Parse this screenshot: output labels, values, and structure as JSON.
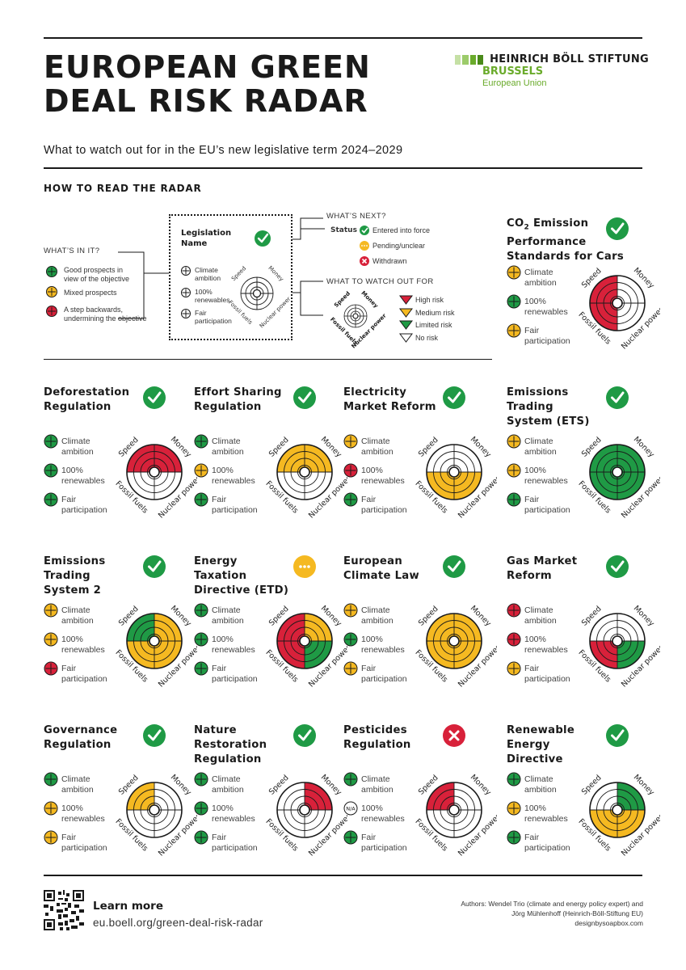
{
  "header": {
    "title_line1": "EUROPEAN GREEN",
    "title_line2": "DEAL RISK RADAR",
    "subtitle": "What to watch out for in the EU’s new legislative term 2024–2029",
    "how_to_read": "HOW TO READ THE RADAR"
  },
  "logo": {
    "name": "HEINRICH BÖLL STIFTUNG",
    "city": "BRUSSELS",
    "region": "European Union",
    "square_colors": [
      "#c5e0a5",
      "#9ccb6a",
      "#6aab2b",
      "#4a8a1a"
    ]
  },
  "colors": {
    "high_risk": "#d8213a",
    "medium_risk": "#f5b921",
    "limited_risk": "#1f9a45",
    "check": "#1f9a45",
    "pending": "#f5b921",
    "withdrawn": "#d8213a"
  },
  "radar_labels": {
    "speed": "Speed",
    "money": "Money",
    "fossil": "Fossil fuels",
    "nuclear": "Nuclear power"
  },
  "criteria": {
    "climate1": "Climate",
    "climate2": "ambition",
    "renew1": "100%",
    "renew2": "renewables",
    "fair1": "Fair",
    "fair2": "participation",
    "na": "N/A"
  },
  "legend": {
    "whats_in_it": "WHAT’S IN IT?",
    "good": [
      "Good prospects in",
      "view of the objective"
    ],
    "mixed": "Mixed prospects",
    "backwards": [
      "A step backwards,",
      "undermining the objective"
    ],
    "whats_next": "WHAT’S NEXT?",
    "status": "Status",
    "entered": "Entered into force",
    "pending": "Pending/unclear",
    "withdrawn": "Withdrawn",
    "watch_out": "WHAT TO WATCH OUT FOR",
    "high": "High risk",
    "medium": "Medium risk",
    "limited": "Limited risk",
    "none": "No risk",
    "sample_name": [
      "Legislation",
      "Name"
    ],
    "sample_climate": [
      "Climate",
      "ambition"
    ],
    "sample_renew": [
      "100%",
      "renewables"
    ],
    "sample_fair": [
      "Fair",
      "participation"
    ]
  },
  "cards": [
    {
      "title": [
        "CO2 Emission",
        "Performance",
        "Standards for Cars"
      ],
      "status": "entered",
      "criteria": [
        "mixed",
        "good",
        "mixed"
      ],
      "risks": {
        "speed": "high",
        "money": "none",
        "fossil": "high",
        "nuclear": "none"
      }
    },
    {
      "title": [
        "Deforestation",
        "Regulation"
      ],
      "status": "entered",
      "criteria": [
        "good",
        "good",
        "good"
      ],
      "risks": {
        "speed": "high",
        "money": "high",
        "fossil": "none",
        "nuclear": "none"
      }
    },
    {
      "title": [
        "Effort Sharing",
        "Regulation"
      ],
      "status": "entered",
      "criteria": [
        "good",
        "mixed",
        "good"
      ],
      "risks": {
        "speed": "medium",
        "money": "medium",
        "fossil": "none",
        "nuclear": "none"
      }
    },
    {
      "title": [
        "Electricity",
        "Market Reform"
      ],
      "status": "entered",
      "criteria": [
        "mixed",
        "backwards",
        "good"
      ],
      "risks": {
        "speed": "none",
        "money": "none",
        "fossil": "medium",
        "nuclear": "medium"
      }
    },
    {
      "title": [
        "Emissions",
        "Trading",
        "System (ETS)"
      ],
      "status": "entered",
      "criteria": [
        "mixed",
        "mixed",
        "good"
      ],
      "risks": {
        "speed": "limited",
        "money": "limited",
        "fossil": "limited",
        "nuclear": "limited"
      }
    },
    {
      "title": [
        "Emissions",
        "Trading",
        "System 2"
      ],
      "status": "entered",
      "criteria": [
        "mixed",
        "mixed",
        "backwards"
      ],
      "risks": {
        "speed": "limited",
        "money": "medium",
        "fossil": "medium",
        "nuclear": "medium"
      }
    },
    {
      "title": [
        "Energy",
        "Taxation",
        "Directive (ETD)"
      ],
      "status": "pending",
      "criteria": [
        "good",
        "good",
        "good"
      ],
      "risks": {
        "speed": "high",
        "money": "medium",
        "fossil": "high",
        "nuclear": "limited"
      }
    },
    {
      "title": [
        "European",
        "Climate Law"
      ],
      "status": "entered",
      "criteria": [
        "mixed",
        "good",
        "mixed"
      ],
      "risks": {
        "speed": "medium",
        "money": "medium",
        "fossil": "medium",
        "nuclear": "medium"
      }
    },
    {
      "title": [
        "Gas Market",
        "Reform"
      ],
      "status": "entered",
      "criteria": [
        "backwards",
        "backwards",
        "mixed"
      ],
      "risks": {
        "speed": "none",
        "money": "none",
        "fossil": "high",
        "nuclear": "limited"
      }
    },
    {
      "title": [
        "Governance",
        "Regulation"
      ],
      "status": "entered",
      "criteria": [
        "good",
        "mixed",
        "mixed"
      ],
      "risks": {
        "speed": "medium",
        "money": "none",
        "fossil": "none",
        "nuclear": "none"
      }
    },
    {
      "title": [
        "Nature",
        "Restoration",
        "Regulation"
      ],
      "status": "entered",
      "criteria": [
        "good",
        "good",
        "good"
      ],
      "risks": {
        "speed": "none",
        "money": "high",
        "fossil": "none",
        "nuclear": "none"
      }
    },
    {
      "title": [
        "Pesticides",
        "Regulation"
      ],
      "status": "withdrawn",
      "criteria": [
        "good",
        "na",
        "good"
      ],
      "risks": {
        "speed": "high",
        "money": "none",
        "fossil": "none",
        "nuclear": "none"
      }
    },
    {
      "title": [
        "Renewable",
        "Energy",
        "Directive"
      ],
      "status": "entered",
      "criteria": [
        "good",
        "mixed",
        "good"
      ],
      "risks": {
        "speed": "none",
        "money": "limited",
        "fossil": "medium",
        "nuclear": "medium"
      }
    }
  ],
  "footer": {
    "learn_more": "Learn more",
    "url": "eu.boell.org/green-deal-risk-radar",
    "authors_line1": "Authors: Wendel Trio (climate and energy policy expert) and",
    "authors_line2": "Jörg Mühlenhoff (Heinrich-Böll-Stiftung EU)",
    "designer": "designbysoapbox.com"
  }
}
